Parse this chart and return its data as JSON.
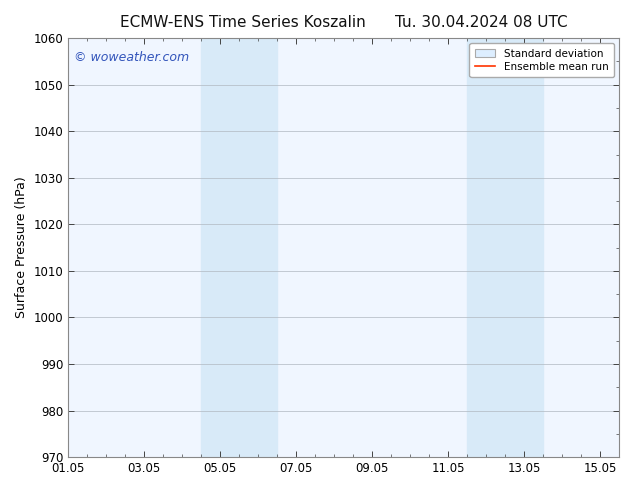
{
  "title_left": "ECMW-ENS Time Series Koszalin",
  "title_right": "Tu. 30.04.2024 08 UTC",
  "ylabel": "Surface Pressure (hPa)",
  "background_color": "#ffffff",
  "plot_bg_color": "#f0f6ff",
  "ylim": [
    970,
    1060
  ],
  "yticks": [
    970,
    980,
    990,
    1000,
    1010,
    1020,
    1030,
    1040,
    1050,
    1060
  ],
  "xlim_start": 0.0,
  "xlim_end": 14.5,
  "xtick_labels": [
    "01.05",
    "03.05",
    "05.05",
    "07.05",
    "09.05",
    "11.05",
    "13.05",
    "15.05"
  ],
  "xtick_positions": [
    0,
    2,
    4,
    6,
    8,
    10,
    12,
    14
  ],
  "shaded_bands": [
    {
      "x_start": 3.5,
      "x_end": 4.5
    },
    {
      "x_start": 4.5,
      "x_end": 5.5
    },
    {
      "x_start": 10.5,
      "x_end": 11.5
    },
    {
      "x_start": 11.5,
      "x_end": 12.5
    }
  ],
  "shade_color": "#d8eaf8",
  "watermark_text": "© woweather.com",
  "watermark_color": "#3355bb",
  "legend_label_std": "Standard deviation",
  "legend_label_ens": "Ensemble mean run",
  "legend_std_color": "#cccccc",
  "legend_ens_color": "#ff3300",
  "grid_color": "#b0b8c0",
  "spine_color": "#888888",
  "tick_color": "#444444",
  "title_fontsize": 11,
  "axis_label_fontsize": 9,
  "tick_fontsize": 8.5,
  "watermark_fontsize": 9
}
